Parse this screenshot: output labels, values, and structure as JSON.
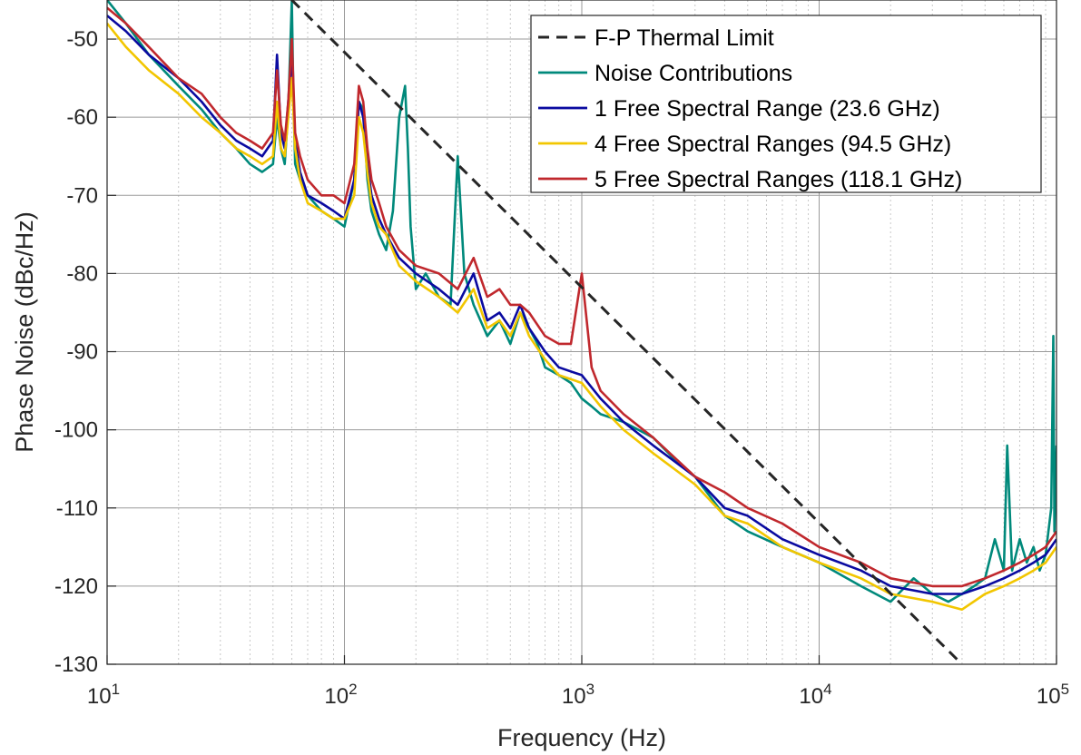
{
  "chart_data": {
    "type": "line",
    "xscale": "log",
    "xlabel": "Frequency (Hz)",
    "ylabel": "Phase Noise (dBc/Hz)",
    "xlim": [
      10,
      100000
    ],
    "ylim": [
      -130,
      -45
    ],
    "grid": true,
    "legend_position": "top-right",
    "x_ticks": [
      {
        "value": 10,
        "base": "10",
        "exp": "1"
      },
      {
        "value": 100,
        "base": "10",
        "exp": "2"
      },
      {
        "value": 1000,
        "base": "10",
        "exp": "3"
      },
      {
        "value": 10000,
        "base": "10",
        "exp": "4"
      },
      {
        "value": 100000,
        "base": "10",
        "exp": "5"
      }
    ],
    "y_ticks": [
      {
        "value": -50,
        "label": "-50"
      },
      {
        "value": -60,
        "label": "-60"
      },
      {
        "value": -70,
        "label": "-70"
      },
      {
        "value": -80,
        "label": "-80"
      },
      {
        "value": -90,
        "label": "-90"
      },
      {
        "value": -100,
        "label": "-100"
      },
      {
        "value": -110,
        "label": "-110"
      },
      {
        "value": -120,
        "label": "-120"
      },
      {
        "value": -130,
        "label": "-130"
      }
    ],
    "series": [
      {
        "name": "F-P Thermal Limit",
        "color": "#262626",
        "dash": true,
        "x": [
          60,
          40000
        ],
        "y": [
          -45,
          -130
        ]
      },
      {
        "name": "Noise Contributions",
        "color": "#00897b",
        "dash": false,
        "x": [
          10,
          12,
          15,
          20,
          25,
          30,
          35,
          40,
          45,
          50,
          52,
          54,
          56,
          58,
          60,
          61,
          62,
          65,
          70,
          80,
          90,
          100,
          110,
          115,
          120,
          125,
          130,
          140,
          150,
          160,
          170,
          180,
          185,
          190,
          200,
          220,
          250,
          280,
          300,
          320,
          350,
          400,
          450,
          500,
          550,
          600,
          650,
          700,
          800,
          900,
          1000,
          1100,
          1200,
          1500,
          2000,
          2500,
          3000,
          4000,
          5000,
          7000,
          10000,
          15000,
          20000,
          25000,
          30000,
          35000,
          40000,
          45000,
          50000,
          55000,
          60000,
          62000,
          65000,
          70000,
          75000,
          80000,
          85000,
          90000,
          95000,
          97000,
          98000,
          100000
        ],
        "y": [
          -45,
          -48,
          -52,
          -56,
          -59,
          -62,
          -64,
          -66,
          -67,
          -66,
          -60,
          -64,
          -66,
          -59,
          -45,
          -58,
          -66,
          -68,
          -70,
          -72,
          -73,
          -74,
          -68,
          -58,
          -59,
          -68,
          -72,
          -75,
          -77,
          -72,
          -60,
          -56,
          -64,
          -74,
          -82,
          -80,
          -83,
          -84,
          -65,
          -80,
          -84,
          -88,
          -86,
          -89,
          -85,
          -87,
          -89,
          -92,
          -93,
          -94,
          -96,
          -97,
          -98,
          -99,
          -101,
          -104,
          -106,
          -111,
          -113,
          -115,
          -117,
          -120,
          -122,
          -119,
          -121,
          -122,
          -121,
          -120,
          -119,
          -114,
          -118,
          -102,
          -118,
          -114,
          -117,
          -115,
          -118,
          -116,
          -110,
          -88,
          -113,
          -102
        ]
      },
      {
        "name": "1 Free Spectral Range (23.6 GHz)",
        "color": "#0a0aa0",
        "dash": false,
        "x": [
          10,
          12,
          15,
          20,
          25,
          30,
          35,
          40,
          45,
          50,
          52,
          54,
          56,
          58,
          60,
          62,
          65,
          70,
          80,
          90,
          100,
          110,
          115,
          120,
          125,
          130,
          140,
          150,
          170,
          200,
          250,
          300,
          350,
          400,
          450,
          500,
          550,
          600,
          700,
          800,
          1000,
          1200,
          1500,
          2000,
          3000,
          4000,
          5000,
          7000,
          10000,
          15000,
          20000,
          30000,
          40000,
          50000,
          60000,
          70000,
          80000,
          90000,
          100000
        ],
        "y": [
          -47,
          -49,
          -52,
          -55,
          -58,
          -61,
          -63,
          -64,
          -65,
          -63,
          -52,
          -62,
          -64,
          -58,
          -52,
          -63,
          -67,
          -70,
          -71,
          -72,
          -73,
          -68,
          -58,
          -60,
          -66,
          -70,
          -73,
          -75,
          -78,
          -80,
          -82,
          -84,
          -80,
          -86,
          -85,
          -87,
          -84,
          -87,
          -90,
          -92,
          -93,
          -96,
          -99,
          -102,
          -106,
          -110,
          -111,
          -114,
          -116,
          -118,
          -120,
          -121,
          -121,
          -120,
          -119,
          -118,
          -117,
          -116,
          -114
        ]
      },
      {
        "name": "4 Free Spectral Ranges (94.5 GHz)",
        "color": "#f2c600",
        "dash": false,
        "x": [
          10,
          12,
          15,
          20,
          25,
          30,
          35,
          40,
          45,
          50,
          52,
          54,
          56,
          58,
          60,
          62,
          65,
          70,
          80,
          90,
          100,
          110,
          115,
          120,
          125,
          130,
          140,
          150,
          170,
          200,
          250,
          300,
          350,
          400,
          450,
          500,
          550,
          600,
          700,
          800,
          1000,
          1200,
          1500,
          2000,
          3000,
          4000,
          5000,
          7000,
          10000,
          15000,
          20000,
          30000,
          40000,
          50000,
          60000,
          70000,
          80000,
          90000,
          100000
        ],
        "y": [
          -48,
          -51,
          -54,
          -57,
          -60,
          -62,
          -64,
          -65,
          -66,
          -65,
          -58,
          -64,
          -65,
          -60,
          -55,
          -64,
          -68,
          -71,
          -72,
          -73,
          -73,
          -70,
          -60,
          -62,
          -67,
          -71,
          -74,
          -75,
          -79,
          -81,
          -83,
          -85,
          -82,
          -87,
          -86,
          -88,
          -85,
          -88,
          -91,
          -93,
          -94,
          -97,
          -100,
          -103,
          -107,
          -111,
          -112,
          -115,
          -117,
          -119,
          -121,
          -122,
          -123,
          -121,
          -120,
          -119,
          -118,
          -117,
          -115
        ]
      },
      {
        "name": "5 Free Spectral Ranges (118.1 GHz)",
        "color": "#c0282d",
        "dash": false,
        "x": [
          10,
          12,
          15,
          20,
          25,
          30,
          35,
          40,
          45,
          50,
          52,
          54,
          56,
          58,
          60,
          62,
          65,
          70,
          80,
          90,
          100,
          110,
          115,
          120,
          125,
          130,
          140,
          150,
          170,
          200,
          250,
          300,
          350,
          400,
          450,
          500,
          550,
          600,
          700,
          800,
          900,
          1000,
          1100,
          1200,
          1500,
          2000,
          3000,
          4000,
          5000,
          7000,
          10000,
          15000,
          20000,
          30000,
          40000,
          50000,
          60000,
          70000,
          80000,
          90000,
          100000
        ],
        "y": [
          -46,
          -48,
          -51,
          -55,
          -57,
          -60,
          -62,
          -63,
          -64,
          -62,
          -54,
          -61,
          -63,
          -58,
          -50,
          -62,
          -65,
          -68,
          -70,
          -70,
          -71,
          -66,
          -56,
          -58,
          -64,
          -68,
          -71,
          -74,
          -77,
          -79,
          -80,
          -82,
          -78,
          -83,
          -82,
          -84,
          -84,
          -85,
          -88,
          -89,
          -89,
          -80,
          -92,
          -95,
          -98,
          -101,
          -106,
          -108,
          -110,
          -112,
          -115,
          -117,
          -119,
          -120,
          -120,
          -119,
          -118,
          -117,
          -116,
          -115,
          -113
        ]
      }
    ]
  }
}
